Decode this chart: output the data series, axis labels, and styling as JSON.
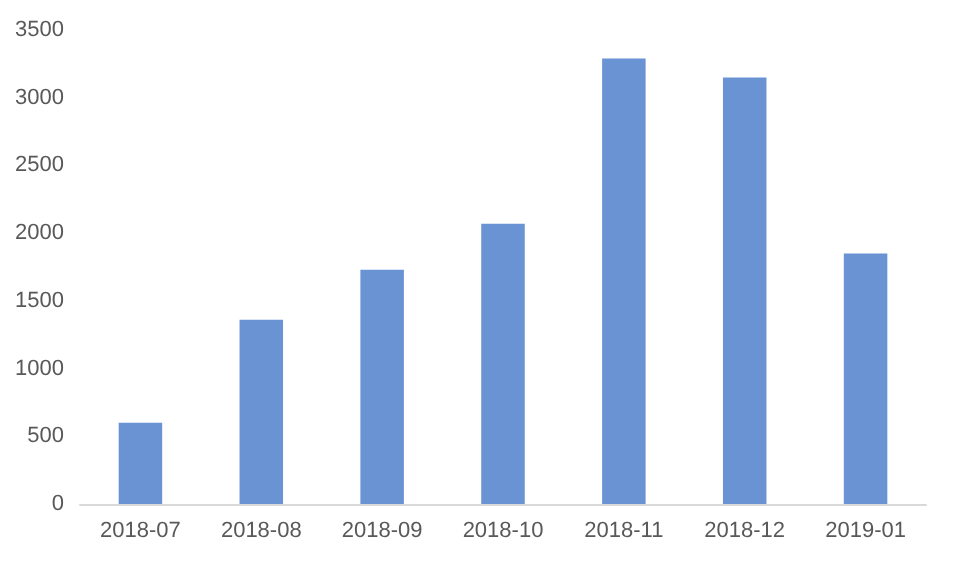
{
  "chart_data": {
    "type": "bar",
    "categories": [
      "2018-07",
      "2018-08",
      "2018-09",
      "2018-10",
      "2018-11",
      "2018-12",
      "2019-01"
    ],
    "values": [
      600,
      1360,
      1730,
      2070,
      3290,
      3150,
      1850
    ],
    "color": "#6a93d4",
    "ylim": [
      0,
      3500
    ],
    "yticks": [
      0,
      500,
      1000,
      1500,
      2000,
      2500,
      3000,
      3500
    ],
    "grid": false
  }
}
